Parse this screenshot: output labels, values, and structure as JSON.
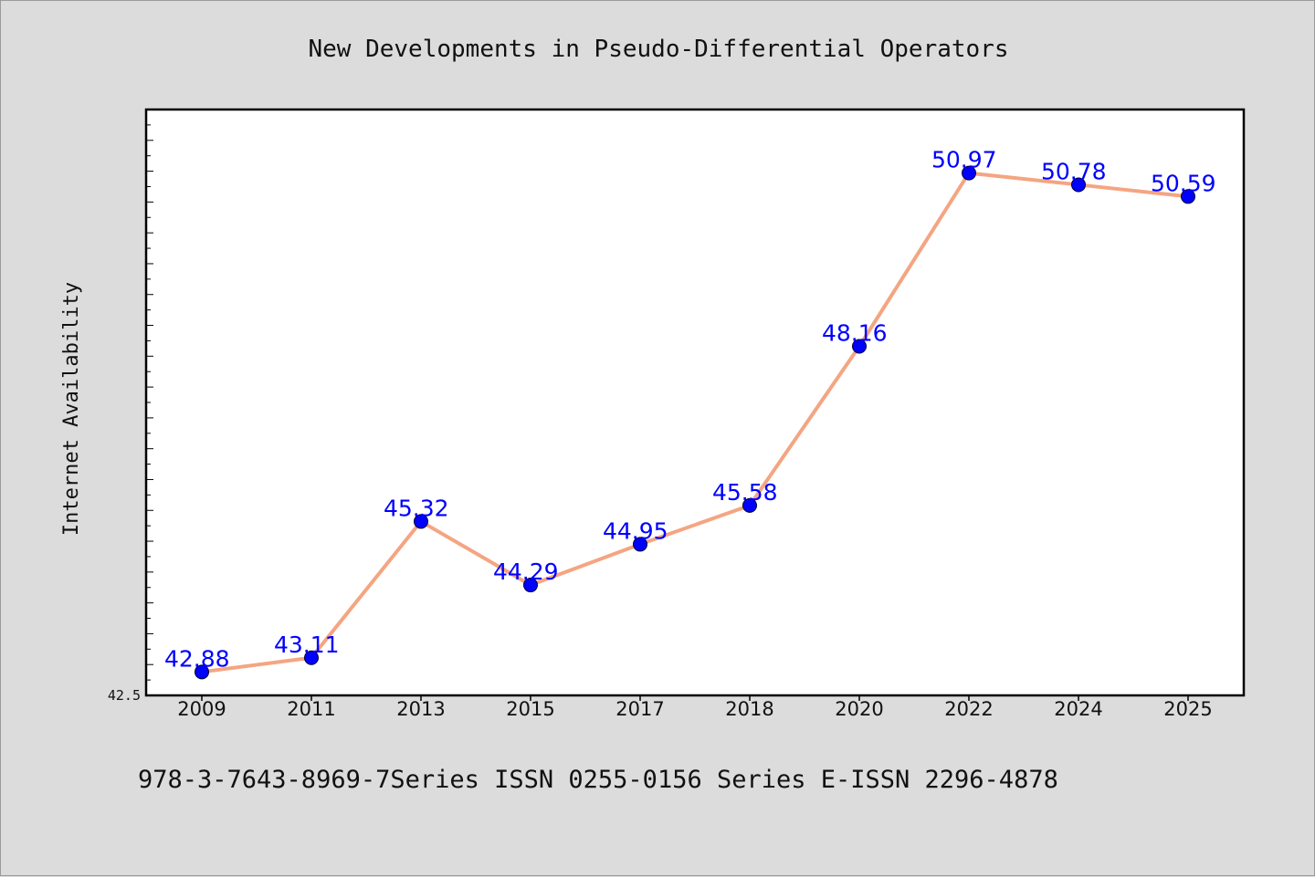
{
  "chart_data": {
    "type": "line",
    "title": "New Developments in Pseudo-Differential Operators",
    "ylabel": "Internet Availability",
    "categories": [
      "2009",
      "2011",
      "2013",
      "2015",
      "2017",
      "2018",
      "2020",
      "2022",
      "2024",
      "2025"
    ],
    "series": [
      {
        "values": [
          42.88,
          43.11,
          45.32,
          44.29,
          44.95,
          45.58,
          48.16,
          50.97,
          50.78,
          50.59
        ],
        "data_labels": [
          "42.88",
          "43.11",
          "45.32",
          "44.29",
          "44.95",
          "45.58",
          "48.16",
          "50.97",
          "50.78",
          "50.59"
        ],
        "line_color": "#f4a582",
        "marker_color": "#0000ff"
      }
    ],
    "ylim": [
      42.5,
      52.0
    ],
    "yticklabels": [
      "42.5"
    ],
    "grid": false,
    "legend": "none"
  },
  "footer": "978-3-7643-8969-7Series ISSN 0255-0156 Series E-ISSN 2296-4878"
}
